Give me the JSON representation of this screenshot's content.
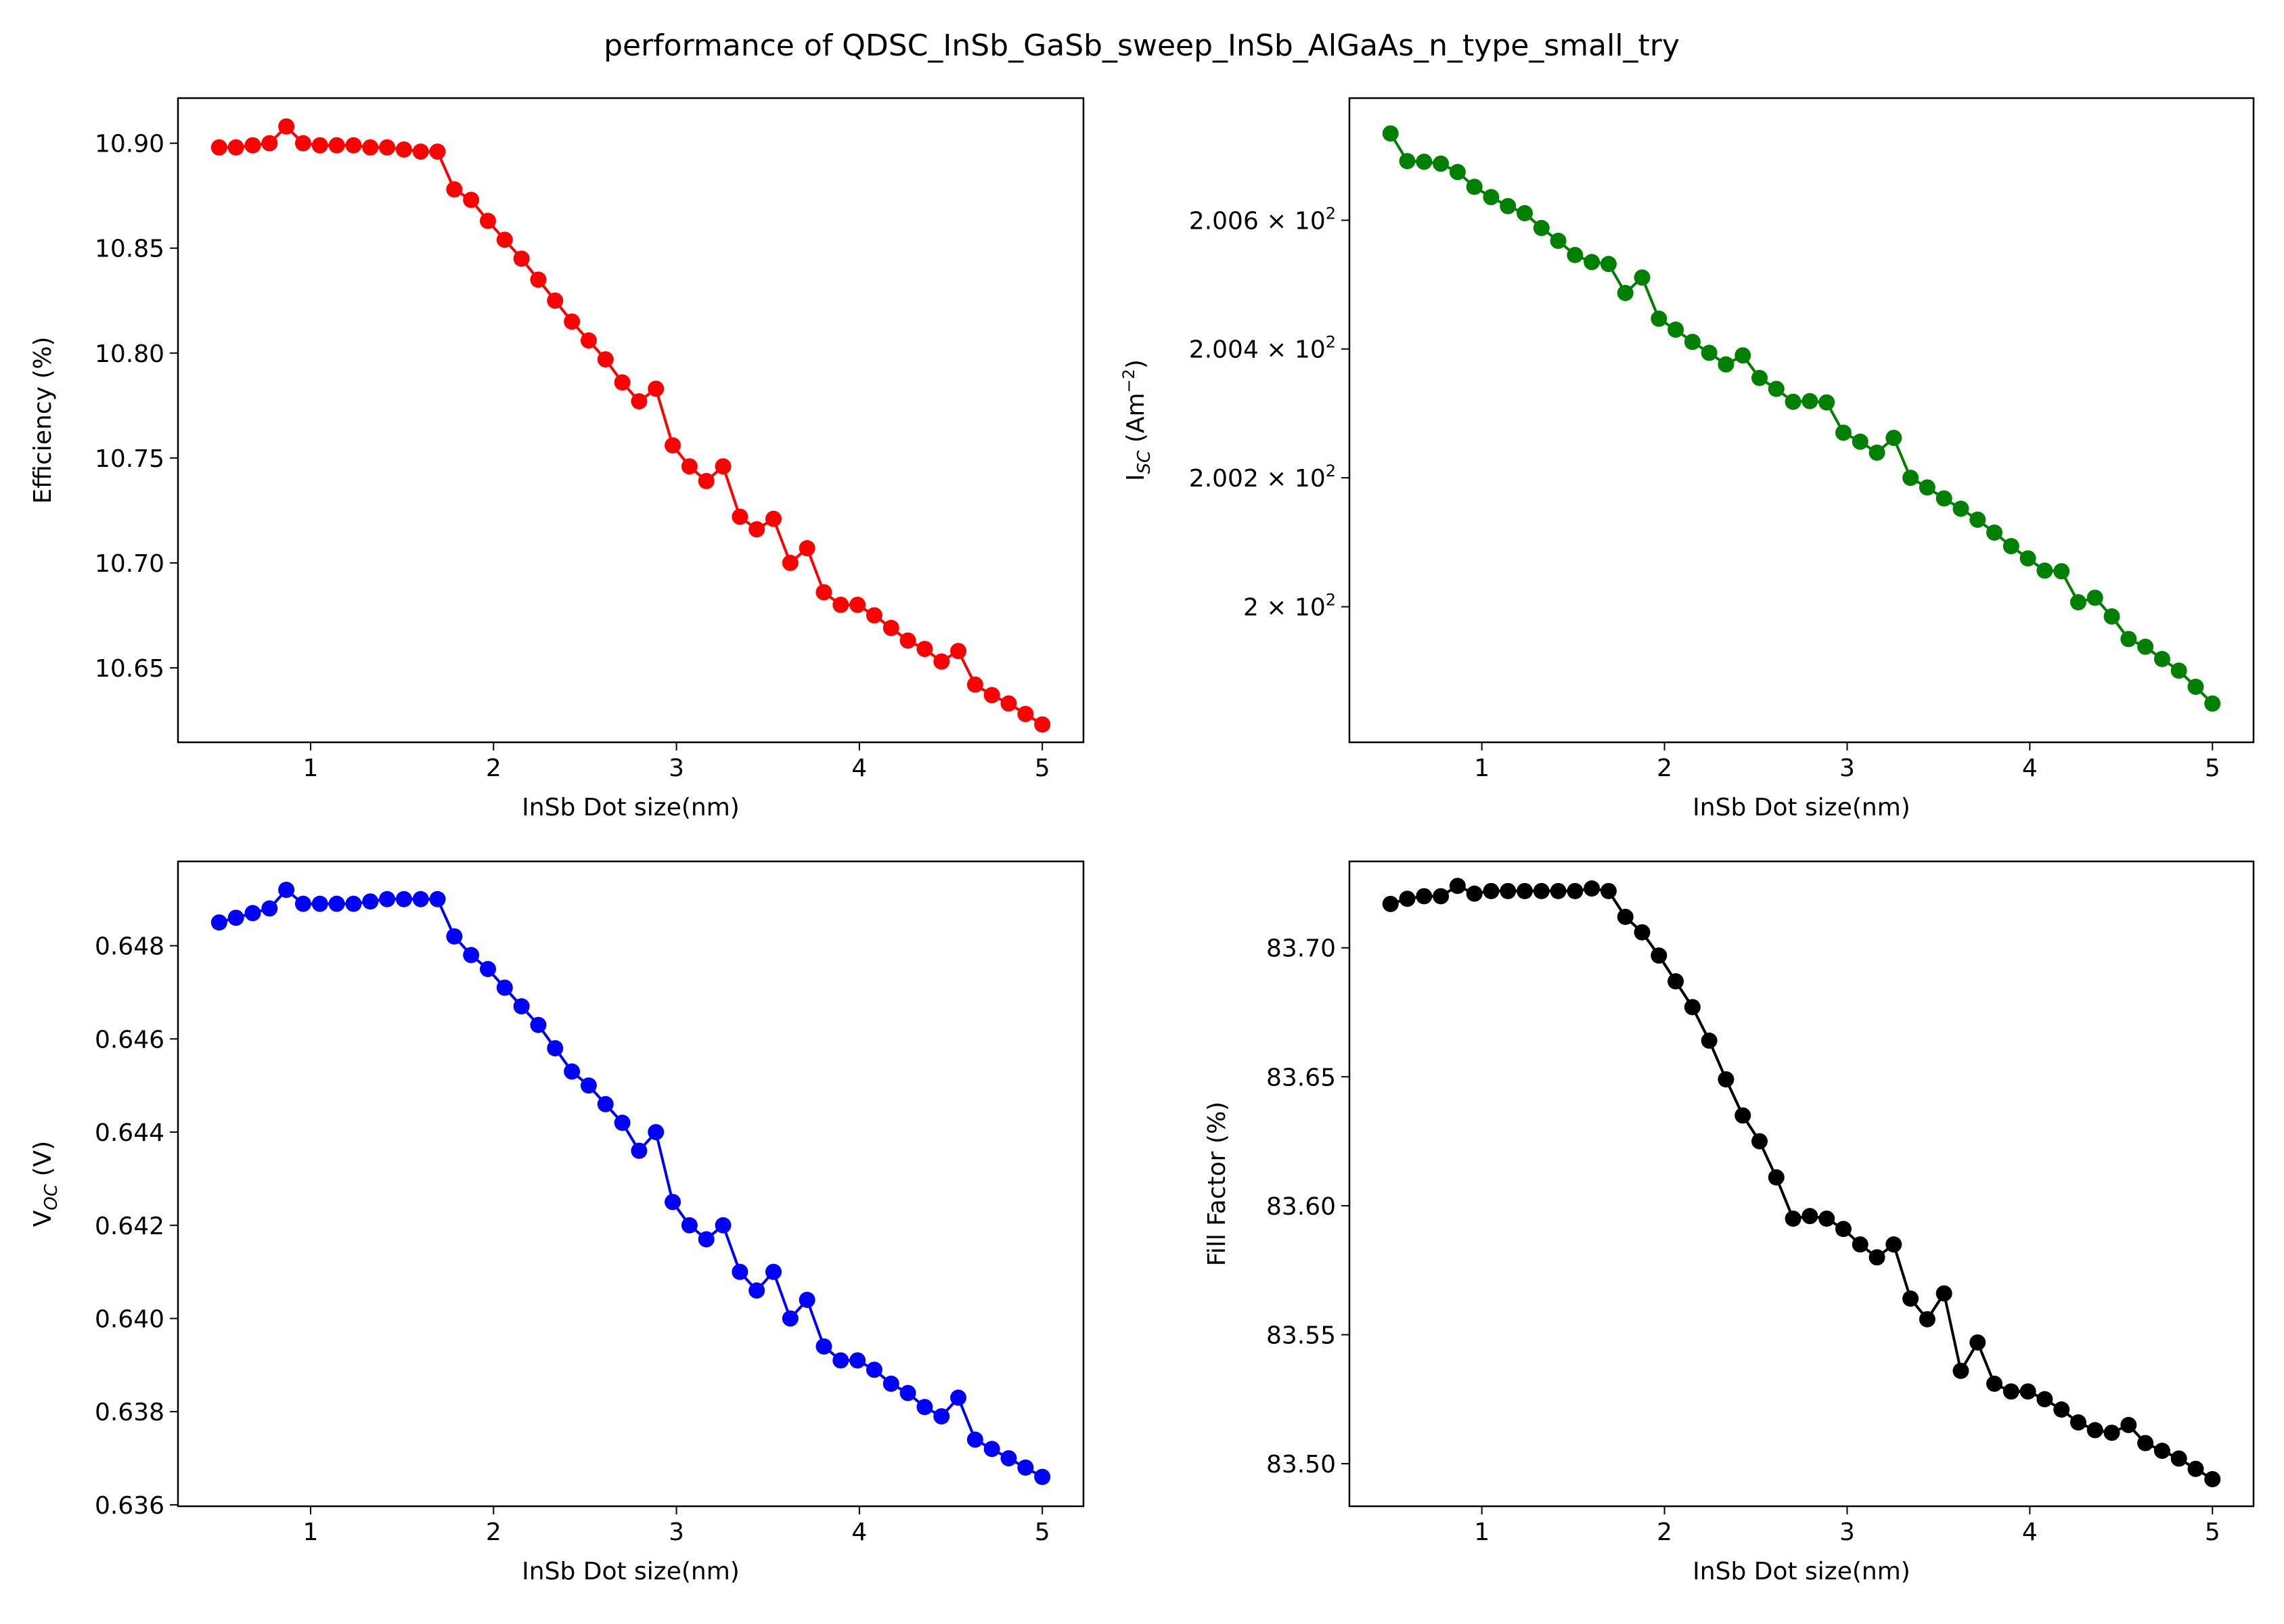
{
  "figure_title": "performance of QDSC_InSb_GaSb_sweep_InSb_AlGaAs_n_type_small_try",
  "chart_data": [
    {
      "type": "line",
      "title": "",
      "xlabel": "InSb Dot size(nm)",
      "ylabel": "Efficiency (%)",
      "color": "#ff0000",
      "grid": false,
      "legend": "none",
      "xlim": [
        0.275,
        5.225
      ],
      "ylim": [
        10.6145,
        10.9215
      ],
      "xticks": [
        1,
        2,
        3,
        4,
        5
      ],
      "xtick_labels": [
        "1",
        "2",
        "3",
        "4",
        "5"
      ],
      "yticks": [
        10.65,
        10.7,
        10.75,
        10.8,
        10.85,
        10.9
      ],
      "ytick_labels": [
        "10.65",
        "10.70",
        "10.75",
        "10.80",
        "10.85",
        "10.90"
      ],
      "x": [
        0.5,
        0.5918,
        0.6837,
        0.7755,
        0.8673,
        0.9592,
        1.051,
        1.1429,
        1.2347,
        1.3265,
        1.4184,
        1.5102,
        1.602,
        1.6939,
        1.7857,
        1.8776,
        1.9694,
        2.0612,
        2.1531,
        2.2449,
        2.3367,
        2.4286,
        2.5204,
        2.6122,
        2.7041,
        2.7959,
        2.8878,
        2.9796,
        3.0714,
        3.1633,
        3.2551,
        3.3469,
        3.4388,
        3.5306,
        3.6224,
        3.7143,
        3.8061,
        3.898,
        3.9898,
        4.0816,
        4.1735,
        4.2653,
        4.3571,
        4.449,
        4.5408,
        4.6327,
        4.7245,
        4.8163,
        4.9082,
        5.0
      ],
      "y": [
        10.898,
        10.898,
        10.899,
        10.9,
        10.908,
        10.9,
        10.899,
        10.899,
        10.899,
        10.898,
        10.898,
        10.897,
        10.896,
        10.896,
        10.878,
        10.873,
        10.863,
        10.854,
        10.845,
        10.835,
        10.825,
        10.815,
        10.806,
        10.797,
        10.786,
        10.777,
        10.783,
        10.756,
        10.746,
        10.739,
        10.746,
        10.722,
        10.716,
        10.721,
        10.7,
        10.707,
        10.686,
        10.68,
        10.68,
        10.675,
        10.669,
        10.663,
        10.659,
        10.653,
        10.658,
        10.642,
        10.637,
        10.633,
        10.628,
        10.623
      ]
    },
    {
      "type": "line",
      "title": "",
      "xlabel": "InSb Dot size(nm)",
      "ylabel": "I_SC (Am^-2)",
      "color": "#008000",
      "grid": false,
      "legend": "none",
      "scale": "log",
      "xlim": [
        0.275,
        5.225
      ],
      "ylim": [
        199.79,
        200.79
      ],
      "xticks": [
        1,
        2,
        3,
        4,
        5
      ],
      "xtick_labels": [
        "1",
        "2",
        "3",
        "4",
        "5"
      ],
      "yticks": [
        200.0,
        200.2,
        200.4,
        200.6
      ],
      "ytick_mantissas": [
        "2",
        "2.002",
        "2.004",
        "2.006"
      ],
      "ytick_exponent": "2",
      "x": [
        0.5,
        0.5918,
        0.6837,
        0.7755,
        0.8673,
        0.9592,
        1.051,
        1.1429,
        1.2347,
        1.3265,
        1.4184,
        1.5102,
        1.602,
        1.6939,
        1.7857,
        1.8776,
        1.9694,
        2.0612,
        2.1531,
        2.2449,
        2.3367,
        2.4286,
        2.5204,
        2.6122,
        2.7041,
        2.7959,
        2.8878,
        2.9796,
        3.0714,
        3.1633,
        3.2551,
        3.3469,
        3.4388,
        3.5306,
        3.6224,
        3.7143,
        3.8061,
        3.898,
        3.9898,
        4.0816,
        4.1735,
        4.2653,
        4.3571,
        4.449,
        4.5408,
        4.6327,
        4.7245,
        4.8163,
        4.9082,
        5.0
      ],
      "y": [
        200.735,
        200.692,
        200.691,
        200.688,
        200.675,
        200.652,
        200.636,
        200.622,
        200.611,
        200.588,
        200.568,
        200.546,
        200.535,
        200.532,
        200.487,
        200.511,
        200.447,
        200.43,
        200.411,
        200.394,
        200.376,
        200.39,
        200.355,
        200.338,
        200.318,
        200.319,
        200.317,
        200.27,
        200.256,
        200.239,
        200.262,
        200.2,
        200.185,
        200.168,
        200.152,
        200.135,
        200.115,
        200.094,
        200.075,
        200.056,
        200.055,
        200.007,
        200.014,
        199.985,
        199.95,
        199.938,
        199.919,
        199.901,
        199.876,
        199.85
      ]
    },
    {
      "type": "line",
      "title": "",
      "xlabel": "InSb Dot size(nm)",
      "ylabel": "V_OC (V)",
      "color": "#0000ff",
      "grid": false,
      "legend": "none",
      "xlim": [
        0.275,
        5.225
      ],
      "ylim": [
        0.63597,
        0.64981
      ],
      "xticks": [
        1,
        2,
        3,
        4,
        5
      ],
      "xtick_labels": [
        "1",
        "2",
        "3",
        "4",
        "5"
      ],
      "yticks": [
        0.636,
        0.638,
        0.64,
        0.642,
        0.644,
        0.646,
        0.648
      ],
      "ytick_labels": [
        "0.636",
        "0.638",
        "0.640",
        "0.642",
        "0.644",
        "0.646",
        "0.648"
      ],
      "x": [
        0.5,
        0.5918,
        0.6837,
        0.7755,
        0.8673,
        0.9592,
        1.051,
        1.1429,
        1.2347,
        1.3265,
        1.4184,
        1.5102,
        1.602,
        1.6939,
        1.7857,
        1.8776,
        1.9694,
        2.0612,
        2.1531,
        2.2449,
        2.3367,
        2.4286,
        2.5204,
        2.6122,
        2.7041,
        2.7959,
        2.8878,
        2.9796,
        3.0714,
        3.1633,
        3.2551,
        3.3469,
        3.4388,
        3.5306,
        3.6224,
        3.7143,
        3.8061,
        3.898,
        3.9898,
        4.0816,
        4.1735,
        4.2653,
        4.3571,
        4.449,
        4.5408,
        4.6327,
        4.7245,
        4.8163,
        4.9082,
        5.0
      ],
      "y": [
        0.6485,
        0.6486,
        0.6487,
        0.6488,
        0.6492,
        0.6489,
        0.6489,
        0.6489,
        0.6489,
        0.64895,
        0.649,
        0.649,
        0.649,
        0.649,
        0.6482,
        0.6478,
        0.6475,
        0.6471,
        0.6467,
        0.6463,
        0.6458,
        0.6453,
        0.645,
        0.6446,
        0.6442,
        0.6436,
        0.644,
        0.6425,
        0.642,
        0.6417,
        0.642,
        0.641,
        0.6406,
        0.641,
        0.64,
        0.6404,
        0.6394,
        0.6391,
        0.6391,
        0.6389,
        0.6386,
        0.6384,
        0.6381,
        0.6379,
        0.6383,
        0.6374,
        0.6372,
        0.637,
        0.6368,
        0.6366
      ]
    },
    {
      "type": "line",
      "title": "",
      "xlabel": "InSb Dot size(nm)",
      "ylabel": "Fill Factor (%)",
      "color": "#000000",
      "grid": false,
      "legend": "none",
      "xlim": [
        0.275,
        5.225
      ],
      "ylim": [
        83.4835,
        83.7335
      ],
      "xticks": [
        1,
        2,
        3,
        4,
        5
      ],
      "xtick_labels": [
        "1",
        "2",
        "3",
        "4",
        "5"
      ],
      "yticks": [
        83.5,
        83.55,
        83.6,
        83.65,
        83.7
      ],
      "ytick_labels": [
        "83.50",
        "83.55",
        "83.60",
        "83.65",
        "83.70"
      ],
      "x": [
        0.5,
        0.5918,
        0.6837,
        0.7755,
        0.8673,
        0.9592,
        1.051,
        1.1429,
        1.2347,
        1.3265,
        1.4184,
        1.5102,
        1.602,
        1.6939,
        1.7857,
        1.8776,
        1.9694,
        2.0612,
        2.1531,
        2.2449,
        2.3367,
        2.4286,
        2.5204,
        2.6122,
        2.7041,
        2.7959,
        2.8878,
        2.9796,
        3.0714,
        3.1633,
        3.2551,
        3.3469,
        3.4388,
        3.5306,
        3.6224,
        3.7143,
        3.8061,
        3.898,
        3.9898,
        4.0816,
        4.1735,
        4.2653,
        4.3571,
        4.449,
        4.5408,
        4.6327,
        4.7245,
        4.8163,
        4.9082,
        5.0
      ],
      "y": [
        83.717,
        83.719,
        83.72,
        83.72,
        83.724,
        83.721,
        83.722,
        83.722,
        83.722,
        83.722,
        83.722,
        83.722,
        83.723,
        83.722,
        83.712,
        83.706,
        83.697,
        83.687,
        83.677,
        83.664,
        83.649,
        83.635,
        83.625,
        83.611,
        83.595,
        83.596,
        83.595,
        83.591,
        83.585,
        83.58,
        83.585,
        83.564,
        83.556,
        83.566,
        83.536,
        83.547,
        83.531,
        83.528,
        83.528,
        83.525,
        83.521,
        83.516,
        83.513,
        83.512,
        83.515,
        83.508,
        83.505,
        83.502,
        83.498,
        83.494
      ]
    }
  ]
}
